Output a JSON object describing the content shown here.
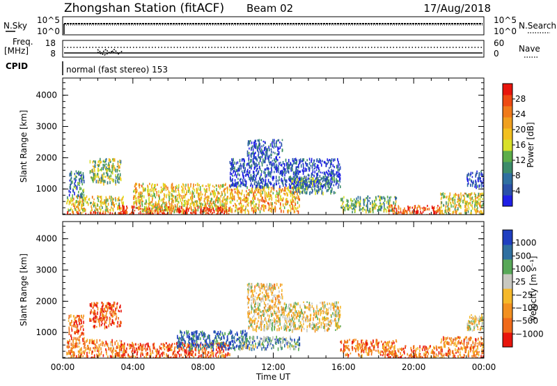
{
  "header": {
    "title": "Zhongshan Station (fitACF)",
    "beam": "Beam 02",
    "date": "17/Aug/2018"
  },
  "top_panels": {
    "nsky_label": "N.Sky",
    "nsky_ticks": [
      "10^5",
      "10^0"
    ],
    "nsearch_label": "N.Search",
    "nsearch_ticks": [
      "10^5",
      "10^0"
    ],
    "freq_label": "Freq.",
    "freq_unit": "[MHz]",
    "freq_ticks": [
      "18",
      "8"
    ],
    "nave_label": "Nave",
    "nave_ticks": [
      "60",
      "0"
    ],
    "cpid_label": "CPID",
    "cpid_text": "normal (fast stereo) 153"
  },
  "chart_data": [
    {
      "type": "heatmap",
      "name": "power",
      "ylabel": "Slant Range [km]",
      "yticks": [
        "1000",
        "2000",
        "3000",
        "4000"
      ],
      "ylim": [
        180,
        4550
      ],
      "xlim": [
        0,
        24
      ],
      "colorbar_label": "Power [dB]",
      "colorbar_ticks": [
        "28",
        "24",
        "20",
        "16",
        "12",
        "8",
        "4"
      ],
      "colorscale": [
        "#1f1fe6",
        "#2a50a8",
        "#2f6fa0",
        "#3c8c6a",
        "#5cad4a",
        "#d8e02a",
        "#f2c020",
        "#f0a020",
        "#f07a1a",
        "#ee4a12",
        "#e8150c"
      ],
      "regions": [
        {
          "x": [
            0.2,
            3.5
          ],
          "y": [
            300,
            800
          ],
          "level": 0.55
        },
        {
          "x": [
            0.2,
            3.5
          ],
          "y": [
            180,
            300
          ],
          "level": 0.9
        },
        {
          "x": [
            0.3,
            1.2
          ],
          "y": [
            800,
            1600
          ],
          "level": 0.25
        },
        {
          "x": [
            1.5,
            3.3
          ],
          "y": [
            1200,
            2000
          ],
          "level": 0.45
        },
        {
          "x": [
            3.2,
            6.3
          ],
          "y": [
            180,
            500
          ],
          "level": 0.9
        },
        {
          "x": [
            4.0,
            9.5
          ],
          "y": [
            300,
            1200
          ],
          "level": 0.6
        },
        {
          "x": [
            6.5,
            9.5
          ],
          "y": [
            180,
            450
          ],
          "level": 0.95
        },
        {
          "x": [
            9.5,
            13.5
          ],
          "y": [
            300,
            1100
          ],
          "level": 0.65
        },
        {
          "x": [
            9.5,
            15.8
          ],
          "y": [
            1100,
            2000
          ],
          "level": 0.12
        },
        {
          "x": [
            10.5,
            12.5
          ],
          "y": [
            2000,
            2600
          ],
          "level": 0.15
        },
        {
          "x": [
            13.0,
            15.5
          ],
          "y": [
            900,
            1400
          ],
          "level": 0.3
        },
        {
          "x": [
            15.8,
            19.0
          ],
          "y": [
            300,
            800
          ],
          "level": 0.4
        },
        {
          "x": [
            18.5,
            21.5
          ],
          "y": [
            180,
            500
          ],
          "level": 0.85
        },
        {
          "x": [
            21.5,
            24.0
          ],
          "y": [
            200,
            900
          ],
          "level": 0.55
        },
        {
          "x": [
            23.0,
            24.0
          ],
          "y": [
            1100,
            1600
          ],
          "level": 0.1
        }
      ]
    },
    {
      "type": "heatmap",
      "name": "velocity",
      "ylabel": "Slant Range [km]",
      "yticks": [
        "1000",
        "2000",
        "3000",
        "4000"
      ],
      "ylim": [
        180,
        4550
      ],
      "xlim": [
        0,
        24
      ],
      "xlabel": "Time UT",
      "xticks": [
        "00:00",
        "04:00",
        "08:00",
        "12:00",
        "16:00",
        "20:00",
        "00:00"
      ],
      "colorbar_label": "Velocity [m s⁻¹]",
      "colorbar_ticks": [
        "1000",
        "500",
        "100",
        "25",
        "−25",
        "−100",
        "−500",
        "−1000"
      ],
      "colorscale": [
        "#e8150c",
        "#f06a1a",
        "#f29020",
        "#f5b82a",
        "#c8c8c0",
        "#58a858",
        "#2f6fa0",
        "#1f3fc0"
      ],
      "regions": [
        {
          "x": [
            0.2,
            3.5
          ],
          "y": [
            200,
            800
          ],
          "level": 0.3
        },
        {
          "x": [
            0.3,
            1.2
          ],
          "y": [
            800,
            1600
          ],
          "level": 0.2
        },
        {
          "x": [
            1.5,
            3.3
          ],
          "y": [
            1200,
            2000
          ],
          "level": 0.15
        },
        {
          "x": [
            3.2,
            9.5
          ],
          "y": [
            180,
            700
          ],
          "level": 0.2
        },
        {
          "x": [
            6.5,
            10.5
          ],
          "y": [
            500,
            1100
          ],
          "level": 0.85
        },
        {
          "x": [
            10.0,
            13.5
          ],
          "y": [
            500,
            900
          ],
          "level": 0.7
        },
        {
          "x": [
            10.5,
            15.8
          ],
          "y": [
            1100,
            2000
          ],
          "level": 0.5
        },
        {
          "x": [
            10.5,
            12.5
          ],
          "y": [
            2000,
            2600
          ],
          "level": 0.45
        },
        {
          "x": [
            15.8,
            19.0
          ],
          "y": [
            300,
            800
          ],
          "level": 0.25
        },
        {
          "x": [
            18.5,
            21.5
          ],
          "y": [
            180,
            600
          ],
          "level": 0.2
        },
        {
          "x": [
            21.5,
            24.0
          ],
          "y": [
            200,
            900
          ],
          "level": 0.3
        },
        {
          "x": [
            23.0,
            24.0
          ],
          "y": [
            1100,
            1600
          ],
          "level": 0.5
        }
      ]
    }
  ],
  "colors": {
    "background": "#ffffff",
    "axis": "#000000"
  }
}
